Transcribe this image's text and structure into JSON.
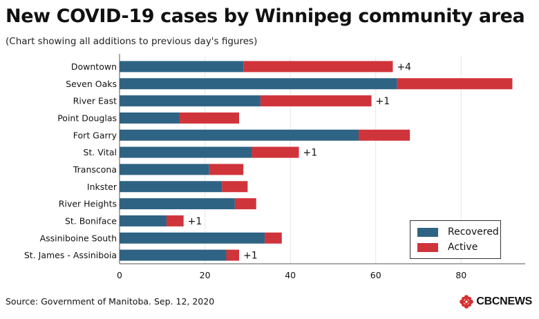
{
  "title": "New COVID-19 cases by Winnipeg community area",
  "subtitle": "(Chart showing all additions to previous day's figures)",
  "source": "Source: Government of Manitoba. Sep. 12, 2020",
  "brand": {
    "name": "CBCNEWS",
    "icon": "cbc-gem-logo"
  },
  "colors": {
    "recovered": "#2e6384",
    "active": "#d0343b",
    "grid": "#e6e6e6",
    "axis": "#555555"
  },
  "chart_data": {
    "type": "bar",
    "orientation": "horizontal",
    "stacked": true,
    "categories": [
      "Downtown",
      "Seven Oaks",
      "River East",
      "Point Douglas",
      "Fort Garry",
      "St. Vital",
      "Transcona",
      "Inkster",
      "River Heights",
      "St. Boniface",
      "Assiniboine South",
      "St. James - Assiniboia"
    ],
    "series": [
      {
        "name": "Recovered",
        "values": [
          29,
          65,
          33,
          14,
          56,
          31,
          21,
          24,
          27,
          11,
          34,
          25
        ]
      },
      {
        "name": "Active",
        "values": [
          35,
          27,
          26,
          14,
          12,
          11,
          8,
          6,
          5,
          4,
          4,
          3
        ]
      }
    ],
    "annotations": [
      "+4",
      "",
      "+1",
      "",
      "",
      "+1",
      "",
      "",
      "",
      "+1",
      "",
      "+1"
    ],
    "xlim": [
      0,
      95
    ],
    "xticks": [
      0,
      20,
      40,
      60,
      80
    ],
    "grid": true,
    "legend_position": "bottom-right"
  }
}
